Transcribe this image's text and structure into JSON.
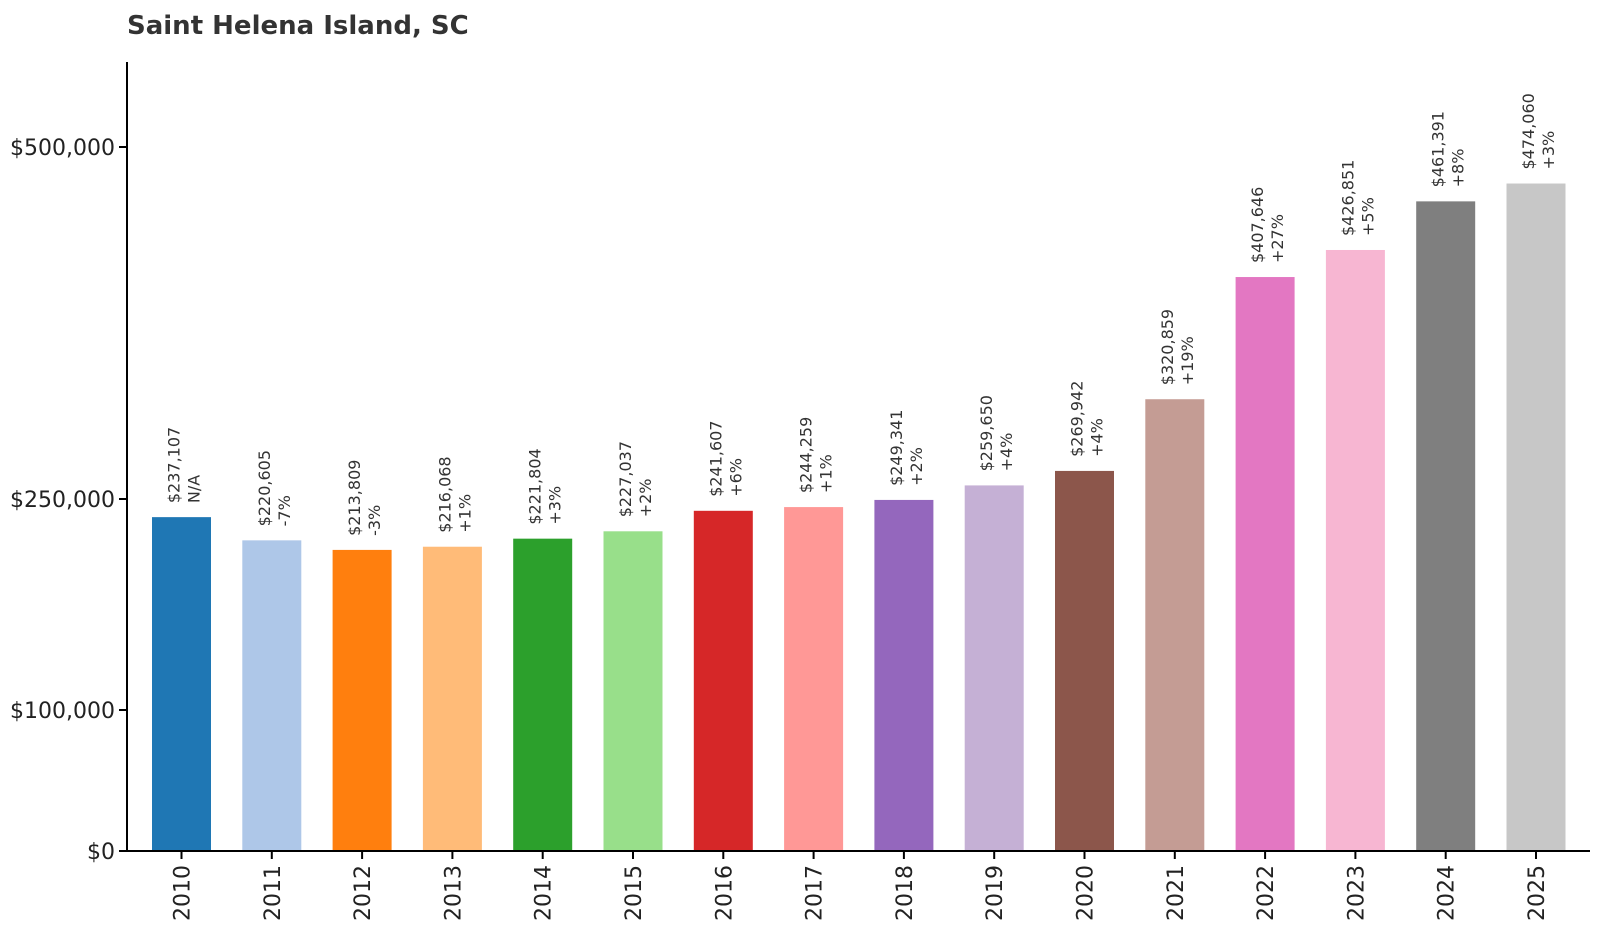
{
  "chart_data": {
    "type": "bar",
    "title": "Saint Helena Island, SC",
    "xlabel": "",
    "ylabel": "",
    "categories": [
      "2010",
      "2011",
      "2012",
      "2013",
      "2014",
      "2015",
      "2016",
      "2017",
      "2018",
      "2019",
      "2020",
      "2021",
      "2022",
      "2023",
      "2024",
      "2025"
    ],
    "values": [
      237107,
      220605,
      213809,
      216068,
      221804,
      227037,
      241607,
      244259,
      249341,
      259650,
      269942,
      320859,
      407646,
      426851,
      461391,
      474060
    ],
    "value_labels": [
      "$237,107",
      "$220,605",
      "$213,809",
      "$216,068",
      "$221,804",
      "$227,037",
      "$241,607",
      "$244,259",
      "$249,341",
      "$259,650",
      "$269,942",
      "$320,859",
      "$407,646",
      "$426,851",
      "$461,391",
      "$474,060"
    ],
    "change_labels": [
      "N/A",
      "-7%",
      "-3%",
      "+1%",
      "+3%",
      "+2%",
      "+6%",
      "+1%",
      "+2%",
      "+4%",
      "+4%",
      "+19%",
      "+27%",
      "+5%",
      "+8%",
      "+3%"
    ],
    "colors": [
      "#1f77b4",
      "#aec7e8",
      "#ff7f0e",
      "#ffbb78",
      "#2ca02c",
      "#98df8a",
      "#d62728",
      "#ff9896",
      "#9467bd",
      "#c5b0d5",
      "#8c564b",
      "#c49c94",
      "#e377c2",
      "#f7b6d2",
      "#7f7f7f",
      "#c7c7c7"
    ],
    "y_ticks": [
      {
        "value": 0,
        "label": "$0"
      },
      {
        "value": 100000,
        "label": "$100,000"
      },
      {
        "value": 250000,
        "label": "$250,000"
      },
      {
        "value": 500000,
        "label": "$500,000"
      }
    ],
    "y_scale": "nonlinear-tick-spacing",
    "grid": false,
    "legend": "none"
  }
}
